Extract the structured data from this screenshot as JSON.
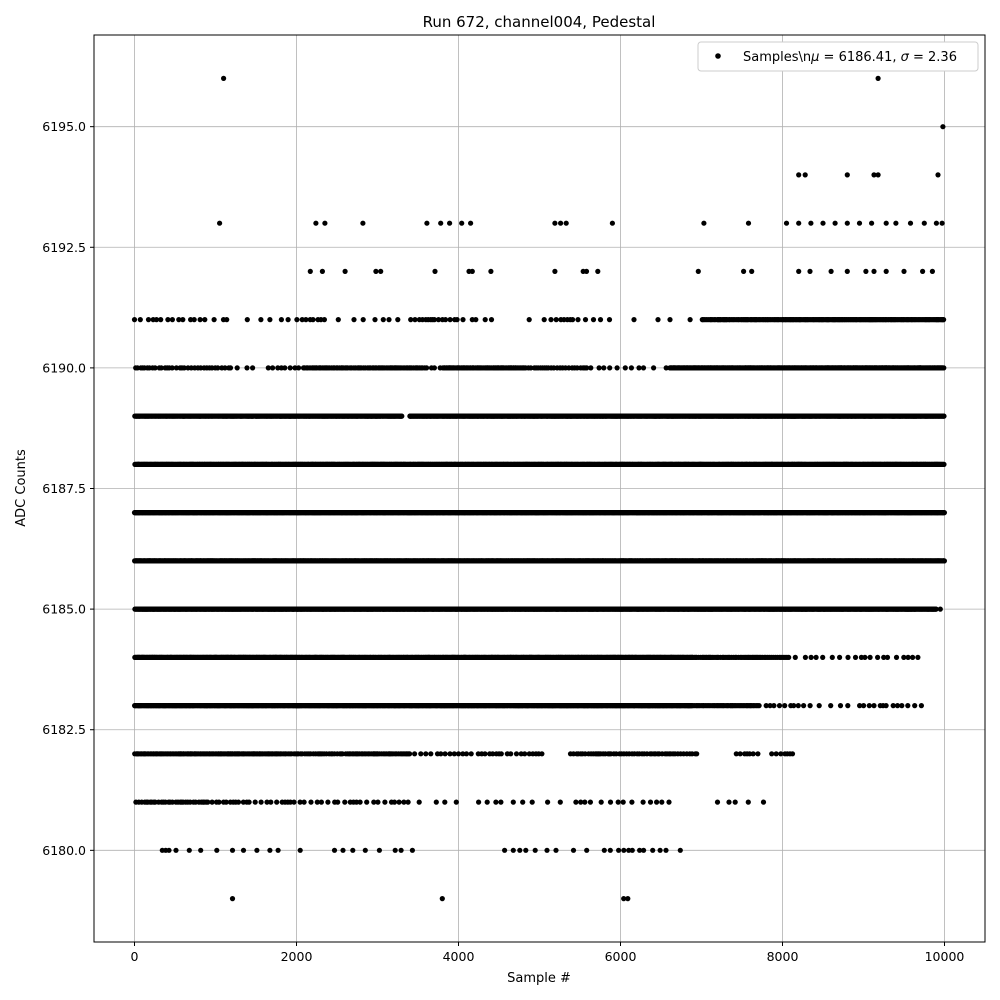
{
  "chart_data": {
    "type": "scatter",
    "title": "Run 672, channel004, Pedestal",
    "xlabel": "Sample #",
    "ylabel": "ADC Counts",
    "xlim": [
      -500,
      10500
    ],
    "ylim": [
      6178.1,
      6196.9
    ],
    "x_ticks": [
      0,
      2000,
      4000,
      6000,
      8000,
      10000
    ],
    "y_ticks": [
      6180.0,
      6182.5,
      6185.0,
      6187.5,
      6190.0,
      6192.5,
      6195.0
    ],
    "x_tick_labels": [
      "0",
      "2000",
      "4000",
      "6000",
      "8000",
      "10000"
    ],
    "y_tick_labels": [
      "6180.0",
      "6182.5",
      "6185.0",
      "6187.5",
      "6190.0",
      "6192.5",
      "6195.0"
    ],
    "grid": true,
    "legend": {
      "placement": "top-right",
      "label_prefix": "Samples\\n",
      "mu_symbol": "μ",
      "mu_text": " = 6186.41, ",
      "sigma_symbol": "σ",
      "sigma_text": " = 2.36"
    },
    "marker_color": "#000000",
    "series": [
      {
        "name": "Samples",
        "points": [
          [
            1100,
            6196
          ],
          [
            9180,
            6196
          ],
          [
            9980,
            6195
          ],
          [
            8200,
            6194
          ],
          [
            8280,
            6194
          ],
          [
            8800,
            6194
          ],
          [
            9130,
            6194
          ],
          [
            9180,
            6194
          ],
          [
            9920,
            6194
          ],
          [
            1050,
            6193
          ],
          [
            2240,
            6193
          ],
          [
            2350,
            6193
          ],
          [
            2820,
            6193
          ],
          [
            3610,
            6193
          ],
          [
            3780,
            6193
          ],
          [
            3890,
            6193
          ],
          [
            4040,
            6193
          ],
          [
            4150,
            6193
          ],
          [
            5190,
            6193
          ],
          [
            5260,
            6193
          ],
          [
            5330,
            6193
          ],
          [
            5900,
            6193
          ],
          [
            7030,
            6193
          ],
          [
            7580,
            6193
          ],
          [
            8050,
            6193
          ],
          [
            8200,
            6193
          ],
          [
            8350,
            6193
          ],
          [
            8500,
            6193
          ],
          [
            8650,
            6193
          ],
          [
            8800,
            6193
          ],
          [
            8950,
            6193
          ],
          [
            9100,
            6193
          ],
          [
            9280,
            6193
          ],
          [
            9400,
            6193
          ],
          [
            9580,
            6193
          ],
          [
            9750,
            6193
          ],
          [
            9900,
            6193
          ],
          [
            9970,
            6193
          ],
          [
            2170,
            6192
          ],
          [
            2320,
            6192
          ],
          [
            2600,
            6192
          ],
          [
            2980,
            6192
          ],
          [
            3040,
            6192
          ],
          [
            3710,
            6192
          ],
          [
            4130,
            6192
          ],
          [
            4170,
            6192
          ],
          [
            4400,
            6192
          ],
          [
            5190,
            6192
          ],
          [
            5540,
            6192
          ],
          [
            5580,
            6192
          ],
          [
            5720,
            6192
          ],
          [
            6960,
            6192
          ],
          [
            7520,
            6192
          ],
          [
            7620,
            6192
          ],
          [
            8200,
            6192
          ],
          [
            8340,
            6192
          ],
          [
            8600,
            6192
          ],
          [
            8800,
            6192
          ],
          [
            9030,
            6192
          ],
          [
            9130,
            6192
          ],
          [
            9280,
            6192
          ],
          [
            9500,
            6192
          ],
          [
            9730,
            6192
          ],
          [
            9850,
            6192
          ],
          [
            1210,
            6179
          ],
          [
            3800,
            6179
          ],
          [
            6040,
            6179
          ],
          [
            6090,
            6179
          ]
        ],
        "rows": [
          {
            "y": 6191,
            "segments": [
              [
                0,
                1100,
                80
              ],
              [
                1100,
                1500,
                220
              ],
              [
                1500,
                2000,
                110
              ],
              [
                2000,
                2400,
                50
              ],
              [
                2400,
                3000,
                180
              ],
              [
                3000,
                3400,
                140
              ],
              [
                3400,
                4000,
                40
              ],
              [
                4000,
                4400,
                80
              ],
              [
                4400,
                5000,
                320
              ],
              [
                5000,
                5400,
                60
              ],
              [
                5400,
                5800,
                80
              ],
              [
                5800,
                6600,
                260
              ],
              [
                6600,
                7000,
                200
              ],
              [
                7000,
                8000,
                16
              ],
              [
                8000,
                9000,
                12
              ],
              [
                9000,
                10000,
                12
              ]
            ]
          },
          {
            "y": 6190,
            "segments": [
              [
                0,
                1200,
                36
              ],
              [
                1200,
                1700,
                130
              ],
              [
                1700,
                2100,
                80
              ],
              [
                2100,
                3600,
                20
              ],
              [
                3600,
                3800,
                60
              ],
              [
                3800,
                4800,
                14
              ],
              [
                4800,
                5600,
                30
              ],
              [
                5600,
                6300,
                70
              ],
              [
                6300,
                6600,
                150
              ],
              [
                6600,
                10000,
                10
              ]
            ]
          },
          {
            "y": 6189,
            "segments": [
              [
                0,
                1800,
                9
              ],
              [
                1800,
                3300,
                8
              ],
              [
                3300,
                3400,
                200
              ],
              [
                3400,
                10000,
                8
              ]
            ]
          },
          {
            "y": 6188,
            "segments": [
              [
                0,
                10000,
                7
              ]
            ]
          },
          {
            "y": 6187,
            "segments": [
              [
                0,
                10000,
                6
              ]
            ]
          },
          {
            "y": 6186,
            "segments": [
              [
                0,
                10000,
                6
              ]
            ]
          },
          {
            "y": 6185,
            "segments": [
              [
                0,
                9900,
                7
              ],
              [
                9900,
                10000,
                60
              ]
            ]
          },
          {
            "y": 6184,
            "segments": [
              [
                0,
                2000,
                8
              ],
              [
                2000,
                4400,
                10
              ],
              [
                4400,
                6900,
                9
              ],
              [
                6900,
                8100,
                18
              ],
              [
                8100,
                8600,
                90
              ],
              [
                8600,
                9680,
                80
              ]
            ]
          },
          {
            "y": 6183,
            "segments": [
              [
                0,
                6900,
                8
              ],
              [
                6900,
                7700,
                16
              ],
              [
                7700,
                8400,
                60
              ],
              [
                8400,
                9000,
                110
              ],
              [
                9000,
                9750,
                60
              ]
            ]
          },
          {
            "y": 6182,
            "segments": [
              [
                0,
                1800,
                14
              ],
              [
                1800,
                2600,
                24
              ],
              [
                2600,
                3400,
                18
              ],
              [
                3400,
                4200,
                60
              ],
              [
                4200,
                5100,
                50
              ],
              [
                5100,
                5400,
                300
              ],
              [
                5400,
                6950,
                28
              ],
              [
                7400,
                7700,
                40
              ],
              [
                7850,
                8150,
                40
              ]
            ]
          },
          {
            "y": 6181,
            "segments": [
              [
                0,
                900,
                30
              ],
              [
                900,
                2000,
                55
              ],
              [
                2000,
                3400,
                60
              ],
              [
                3400,
                4200,
                180
              ],
              [
                4200,
                4600,
                120
              ],
              [
                4600,
                5500,
                150
              ],
              [
                5500,
                6600,
                100
              ],
              [
                7100,
                7800,
                130
              ]
            ]
          },
          {
            "y": 6180,
            "segments": [
              [
                320,
                460,
                40
              ],
              [
                460,
                1100,
                160
              ],
              [
                1200,
                1800,
                110
              ],
              [
                1800,
                2500,
                320
              ],
              [
                2500,
                3500,
                140
              ],
              [
                4500,
                5000,
                90
              ],
              [
                5000,
                5800,
                190
              ],
              [
                5800,
                6500,
                80
              ],
              [
                6500,
                6850,
                170
              ]
            ]
          }
        ]
      }
    ]
  }
}
